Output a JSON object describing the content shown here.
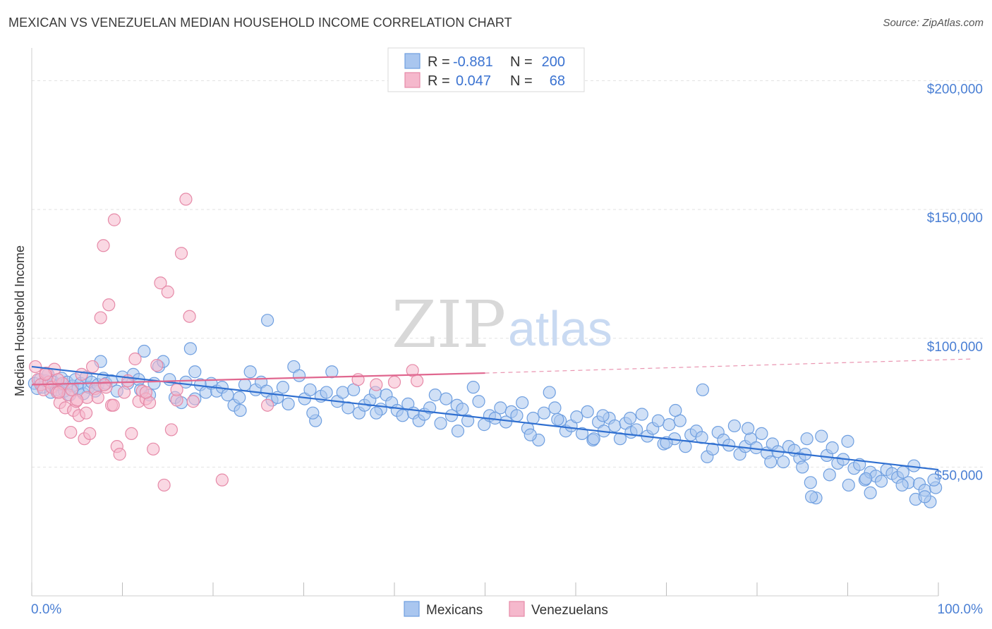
{
  "title": "MEXICAN VS VENEZUELAN MEDIAN HOUSEHOLD INCOME CORRELATION CHART",
  "source": "Source: ZipAtlas.com",
  "watermark": {
    "zip": "ZIP",
    "atlas": "atlas"
  },
  "legend_top": [
    {
      "r_label": "R =",
      "r_value": "-0.881",
      "n_label": "N =",
      "n_value": "200",
      "color": "#a9c6ef",
      "stroke": "#6f9fe0"
    },
    {
      "r_label": "R =",
      "r_value": "0.047",
      "n_label": "N =",
      "n_value": "68",
      "color": "#f5b8cc",
      "stroke": "#e68aa8"
    }
  ],
  "legend_bottom": [
    {
      "label": "Mexicans",
      "color": "#a9c6ef",
      "stroke": "#6f9fe0"
    },
    {
      "label": "Venezuelans",
      "color": "#f5b8cc",
      "stroke": "#e68aa8"
    }
  ],
  "chart_data": {
    "type": "scatter",
    "ylabel": "Median Household Income",
    "xlim": [
      0,
      100
    ],
    "ylim": [
      0,
      210000
    ],
    "y_ticks": [
      {
        "value": 50000,
        "label": "$50,000"
      },
      {
        "value": 100000,
        "label": "$100,000"
      },
      {
        "value": 150000,
        "label": "$150,000"
      },
      {
        "value": 200000,
        "label": "$200,000"
      }
    ],
    "x_tick_labels": [
      {
        "value": 0,
        "label": "0.0%"
      },
      {
        "value": 100,
        "label": "100.0%"
      }
    ],
    "grid": true,
    "series": [
      {
        "name": "Mexicans",
        "color": "#6f9fe0",
        "fill": "#a9c6ef",
        "trend": {
          "x": [
            0,
            100
          ],
          "y": [
            89000,
            49000
          ],
          "style": "solid",
          "color": "#2f6fd0"
        },
        "points": [
          [
            0.3,
            82500
          ],
          [
            0.6,
            80500
          ],
          [
            0.9,
            84000
          ],
          [
            1.2,
            81000
          ],
          [
            1.5,
            83500
          ],
          [
            1.8,
            86000
          ],
          [
            2.1,
            79000
          ],
          [
            2.4,
            83000
          ],
          [
            2.7,
            80000
          ],
          [
            3.0,
            82000
          ],
          [
            3.3,
            84500
          ],
          [
            3.6,
            79500
          ],
          [
            3.9,
            83000
          ],
          [
            4.2,
            78000
          ],
          [
            4.5,
            81500
          ],
          [
            4.8,
            84000
          ],
          [
            5.1,
            80500
          ],
          [
            5.4,
            82500
          ],
          [
            5.7,
            78500
          ],
          [
            6.0,
            85000
          ],
          [
            6.3,
            81000
          ],
          [
            6.6,
            83000
          ],
          [
            7.0,
            79500
          ],
          [
            7.3,
            82000
          ],
          [
            7.6,
            91000
          ],
          [
            7.9,
            84500
          ],
          [
            8.2,
            82500
          ],
          [
            8.8,
            83500
          ],
          [
            9.4,
            79500
          ],
          [
            10.0,
            85000
          ],
          [
            10.6,
            82500
          ],
          [
            11.2,
            86000
          ],
          [
            11.8,
            84000
          ],
          [
            12.4,
            95000
          ],
          [
            13.0,
            78000
          ],
          [
            13.5,
            82500
          ],
          [
            14.0,
            89000
          ],
          [
            14.5,
            91000
          ],
          [
            15.2,
            84000
          ],
          [
            15.8,
            77000
          ],
          [
            16.5,
            75000
          ],
          [
            17.0,
            83000
          ],
          [
            17.5,
            96000
          ],
          [
            18.0,
            87000
          ],
          [
            18.6,
            82000
          ],
          [
            19.2,
            79000
          ],
          [
            19.8,
            82500
          ],
          [
            20.4,
            79500
          ],
          [
            21.0,
            81000
          ],
          [
            21.6,
            78000
          ],
          [
            22.3,
            74000
          ],
          [
            22.9,
            77000
          ],
          [
            23.5,
            82000
          ],
          [
            24.1,
            87000
          ],
          [
            24.7,
            80000
          ],
          [
            25.3,
            83000
          ],
          [
            25.9,
            79500
          ],
          [
            26.5,
            76000
          ],
          [
            27.1,
            77000
          ],
          [
            27.7,
            81000
          ],
          [
            28.3,
            74500
          ],
          [
            28.9,
            89000
          ],
          [
            29.5,
            85500
          ],
          [
            30.1,
            76500
          ],
          [
            30.7,
            80000
          ],
          [
            31.3,
            68000
          ],
          [
            31.9,
            77500
          ],
          [
            32.5,
            79000
          ],
          [
            33.1,
            87000
          ],
          [
            33.7,
            75500
          ],
          [
            34.3,
            79000
          ],
          [
            34.9,
            73000
          ],
          [
            35.5,
            80000
          ],
          [
            36.1,
            71000
          ],
          [
            36.7,
            74000
          ],
          [
            37.3,
            76000
          ],
          [
            37.9,
            79000
          ],
          [
            38.5,
            72500
          ],
          [
            39.1,
            78000
          ],
          [
            39.7,
            75000
          ],
          [
            40.3,
            72000
          ],
          [
            40.9,
            70000
          ],
          [
            41.5,
            74500
          ],
          [
            42.1,
            71000
          ],
          [
            42.7,
            68000
          ],
          [
            43.3,
            70500
          ],
          [
            43.9,
            73000
          ],
          [
            44.5,
            78000
          ],
          [
            45.1,
            67000
          ],
          [
            45.7,
            76500
          ],
          [
            46.3,
            70000
          ],
          [
            46.9,
            74000
          ],
          [
            47.5,
            72500
          ],
          [
            48.1,
            68000
          ],
          [
            48.7,
            81000
          ],
          [
            49.3,
            75500
          ],
          [
            49.9,
            66500
          ],
          [
            50.5,
            70000
          ],
          [
            51.1,
            69000
          ],
          [
            51.7,
            73000
          ],
          [
            52.3,
            67500
          ],
          [
            52.9,
            71500
          ],
          [
            53.5,
            70000
          ],
          [
            54.1,
            75000
          ],
          [
            54.7,
            65000
          ],
          [
            55.3,
            69000
          ],
          [
            55.9,
            60500
          ],
          [
            56.5,
            71000
          ],
          [
            57.1,
            79000
          ],
          [
            57.7,
            73000
          ],
          [
            58.3,
            68000
          ],
          [
            58.9,
            64000
          ],
          [
            59.5,
            66000
          ],
          [
            60.1,
            69500
          ],
          [
            60.7,
            63000
          ],
          [
            61.3,
            71500
          ],
          [
            61.9,
            60500
          ],
          [
            62.5,
            67500
          ],
          [
            63.1,
            64000
          ],
          [
            63.7,
            69000
          ],
          [
            64.3,
            66000
          ],
          [
            64.9,
            61000
          ],
          [
            65.5,
            67000
          ],
          [
            66.1,
            63500
          ],
          [
            66.7,
            64500
          ],
          [
            67.3,
            70500
          ],
          [
            67.9,
            62000
          ],
          [
            68.5,
            65000
          ],
          [
            69.1,
            68000
          ],
          [
            69.7,
            59000
          ],
          [
            70.3,
            66500
          ],
          [
            70.9,
            61000
          ],
          [
            71.5,
            68000
          ],
          [
            72.1,
            58000
          ],
          [
            72.7,
            62500
          ],
          [
            73.3,
            64000
          ],
          [
            73.9,
            61500
          ],
          [
            74.5,
            54000
          ],
          [
            75.1,
            57000
          ],
          [
            75.7,
            63500
          ],
          [
            76.3,
            60500
          ],
          [
            76.9,
            58500
          ],
          [
            77.5,
            66000
          ],
          [
            78.1,
            55000
          ],
          [
            78.7,
            58000
          ],
          [
            79.3,
            61000
          ],
          [
            79.9,
            57500
          ],
          [
            80.5,
            63000
          ],
          [
            81.1,
            55500
          ],
          [
            81.7,
            59000
          ],
          [
            82.3,
            56000
          ],
          [
            82.9,
            52000
          ],
          [
            83.5,
            58000
          ],
          [
            84.1,
            56500
          ],
          [
            84.7,
            53500
          ],
          [
            85.3,
            55000
          ],
          [
            85.9,
            44000
          ],
          [
            86.5,
            38000
          ],
          [
            87.1,
            62000
          ],
          [
            87.7,
            54500
          ],
          [
            88.3,
            57500
          ],
          [
            88.9,
            51500
          ],
          [
            89.5,
            53000
          ],
          [
            90.1,
            43000
          ],
          [
            90.7,
            49500
          ],
          [
            91.3,
            51000
          ],
          [
            91.9,
            45000
          ],
          [
            92.5,
            48000
          ],
          [
            93.1,
            46500
          ],
          [
            93.7,
            44500
          ],
          [
            94.3,
            49000
          ],
          [
            94.9,
            47500
          ],
          [
            95.5,
            46000
          ],
          [
            96.1,
            48000
          ],
          [
            96.7,
            44000
          ],
          [
            97.3,
            50500
          ],
          [
            97.9,
            43500
          ],
          [
            98.5,
            41000
          ],
          [
            99.1,
            36500
          ],
          [
            99.7,
            42000
          ],
          [
            23.0,
            72000
          ],
          [
            31.0,
            71000
          ],
          [
            47.0,
            64000
          ],
          [
            55.0,
            62500
          ],
          [
            63.0,
            70000
          ],
          [
            71.0,
            72000
          ],
          [
            79.0,
            65000
          ],
          [
            85.0,
            50000
          ],
          [
            88.0,
            47000
          ],
          [
            90.0,
            60000
          ],
          [
            92.5,
            40000
          ],
          [
            96.0,
            43000
          ],
          [
            97.5,
            37500
          ],
          [
            98.5,
            38500
          ],
          [
            99.5,
            45000
          ],
          [
            26.0,
            107000
          ],
          [
            12.0,
            80000
          ],
          [
            18.0,
            76500
          ],
          [
            38.0,
            71000
          ],
          [
            62.0,
            61000
          ],
          [
            66.0,
            69000
          ],
          [
            58.0,
            68500
          ],
          [
            70.0,
            59500
          ],
          [
            85.5,
            61000
          ],
          [
            92.0,
            45500
          ],
          [
            74.0,
            80000
          ],
          [
            81.5,
            52000
          ],
          [
            86.0,
            38500
          ]
        ]
      },
      {
        "name": "Venezuelans",
        "color": "#e68aa8",
        "fill": "#f5b8cc",
        "trend": {
          "x": [
            0,
            50
          ],
          "y": [
            82000,
            86500
          ],
          "x_ext": [
            50,
            100
          ],
          "y_ext": [
            86500,
            92000
          ],
          "style": "solid",
          "color": "#e0678f"
        },
        "points": [
          [
            0.4,
            89000
          ],
          [
            0.7,
            84000
          ],
          [
            1.0,
            82000
          ],
          [
            1.3,
            80000
          ],
          [
            1.6,
            86500
          ],
          [
            1.9,
            83000
          ],
          [
            2.2,
            81000
          ],
          [
            2.5,
            88000
          ],
          [
            2.8,
            79000
          ],
          [
            3.1,
            75000
          ],
          [
            3.4,
            82500
          ],
          [
            3.7,
            73000
          ],
          [
            4.0,
            78000
          ],
          [
            4.3,
            63500
          ],
          [
            4.6,
            72000
          ],
          [
            4.9,
            75500
          ],
          [
            5.2,
            70000
          ],
          [
            5.5,
            86000
          ],
          [
            5.8,
            61000
          ],
          [
            6.1,
            77000
          ],
          [
            6.4,
            63000
          ],
          [
            6.7,
            89000
          ],
          [
            7.0,
            80500
          ],
          [
            7.3,
            77000
          ],
          [
            7.6,
            108000
          ],
          [
            7.9,
            136000
          ],
          [
            8.2,
            81000
          ],
          [
            8.5,
            113000
          ],
          [
            8.8,
            74000
          ],
          [
            9.1,
            146000
          ],
          [
            9.4,
            58000
          ],
          [
            9.7,
            55000
          ],
          [
            10.2,
            79000
          ],
          [
            10.6,
            83500
          ],
          [
            11.0,
            63000
          ],
          [
            11.4,
            92000
          ],
          [
            11.8,
            75500
          ],
          [
            12.2,
            79500
          ],
          [
            12.6,
            76500
          ],
          [
            13.0,
            75000
          ],
          [
            13.4,
            57000
          ],
          [
            13.8,
            89500
          ],
          [
            14.2,
            121500
          ],
          [
            14.6,
            43000
          ],
          [
            15.0,
            118000
          ],
          [
            15.4,
            64500
          ],
          [
            16.0,
            76000
          ],
          [
            16.5,
            133000
          ],
          [
            17.0,
            154000
          ],
          [
            17.4,
            108500
          ],
          [
            17.8,
            75500
          ],
          [
            1.5,
            86000
          ],
          [
            2.9,
            84000
          ],
          [
            4.4,
            80000
          ],
          [
            6.0,
            71000
          ],
          [
            9.0,
            74000
          ],
          [
            21.0,
            45000
          ],
          [
            26.0,
            74000
          ],
          [
            36.0,
            84000
          ],
          [
            38.0,
            82000
          ],
          [
            40.0,
            83000
          ],
          [
            42.0,
            87500
          ],
          [
            42.5,
            83500
          ],
          [
            12.6,
            79000
          ],
          [
            5.0,
            76000
          ],
          [
            8.0,
            82000
          ],
          [
            3.0,
            79000
          ],
          [
            16.0,
            80000
          ]
        ]
      }
    ]
  }
}
